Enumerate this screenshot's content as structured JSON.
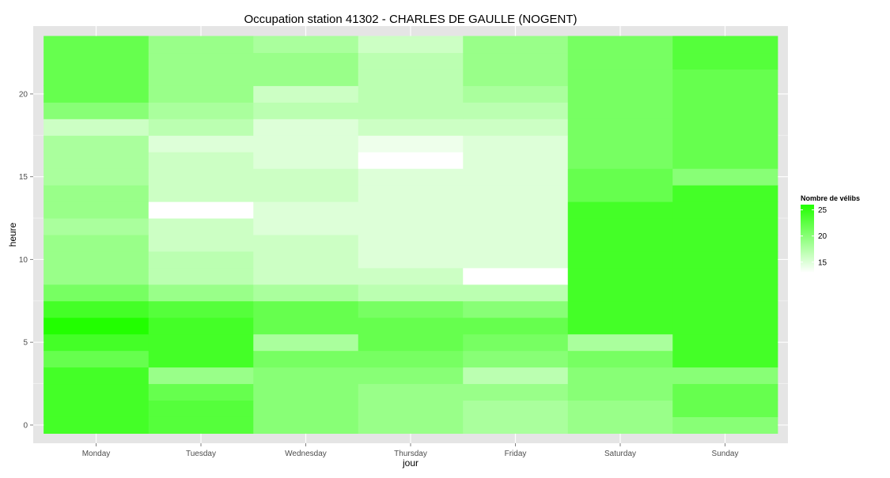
{
  "chart_data": {
    "type": "heatmap",
    "title": "Occupation station 41302 - CHARLES DE GAULLE (NOGENT)",
    "xlabel": "jour",
    "ylabel": "heure",
    "categories": [
      "Monday",
      "Tuesday",
      "Wednesday",
      "Thursday",
      "Friday",
      "Saturday",
      "Sunday"
    ],
    "y_ticks": [
      0,
      5,
      10,
      15,
      20
    ],
    "ylim": [
      -0.5,
      23.5
    ],
    "grid": true,
    "legend": {
      "title": "Nombre de vélibs",
      "ticks": [
        15,
        20,
        25
      ],
      "range": [
        13,
        26
      ],
      "low_color": "#ffffff",
      "high_color": "#22ff00",
      "placement": "right"
    },
    "hours": [
      0,
      1,
      2,
      3,
      4,
      5,
      6,
      7,
      8,
      9,
      10,
      11,
      12,
      13,
      14,
      15,
      16,
      17,
      18,
      19,
      20,
      21,
      22,
      23
    ],
    "values": [
      [
        24,
        23,
        20,
        19,
        18,
        19,
        20
      ],
      [
        24,
        23,
        20,
        19,
        18,
        19,
        22
      ],
      [
        24,
        22,
        20,
        19,
        19,
        20,
        22
      ],
      [
        24,
        19,
        20,
        20,
        17,
        20,
        20
      ],
      [
        22,
        24,
        21,
        21,
        20,
        21,
        24
      ],
      [
        24,
        24,
        18,
        22,
        21,
        18,
        24
      ],
      [
        26,
        24,
        22,
        22,
        22,
        24,
        24
      ],
      [
        24,
        23,
        22,
        21,
        20,
        24,
        24
      ],
      [
        21,
        19,
        18,
        17,
        17,
        24,
        24
      ],
      [
        19,
        17,
        16,
        16,
        13,
        24,
        24
      ],
      [
        19,
        17,
        16,
        15,
        15,
        24,
        24
      ],
      [
        19,
        16,
        16,
        15,
        15,
        24,
        24
      ],
      [
        18,
        16,
        15,
        15,
        15,
        24,
        24
      ],
      [
        19,
        13,
        15,
        15,
        15,
        24,
        24
      ],
      [
        19,
        16,
        16,
        15,
        15,
        22,
        24
      ],
      [
        18,
        16,
        16,
        15,
        15,
        22,
        20
      ],
      [
        18,
        16,
        15,
        13,
        15,
        21,
        22
      ],
      [
        18,
        15,
        15,
        14,
        15,
        21,
        22
      ],
      [
        16,
        17,
        15,
        16,
        16,
        21,
        22
      ],
      [
        20,
        18,
        17,
        17,
        17,
        21,
        22
      ],
      [
        22,
        19,
        16,
        17,
        18,
        21,
        22
      ],
      [
        22,
        19,
        19,
        17,
        19,
        21,
        22
      ],
      [
        22,
        19,
        19,
        17,
        19,
        21,
        23
      ],
      [
        22,
        19,
        18,
        16,
        19,
        21,
        23
      ]
    ]
  }
}
